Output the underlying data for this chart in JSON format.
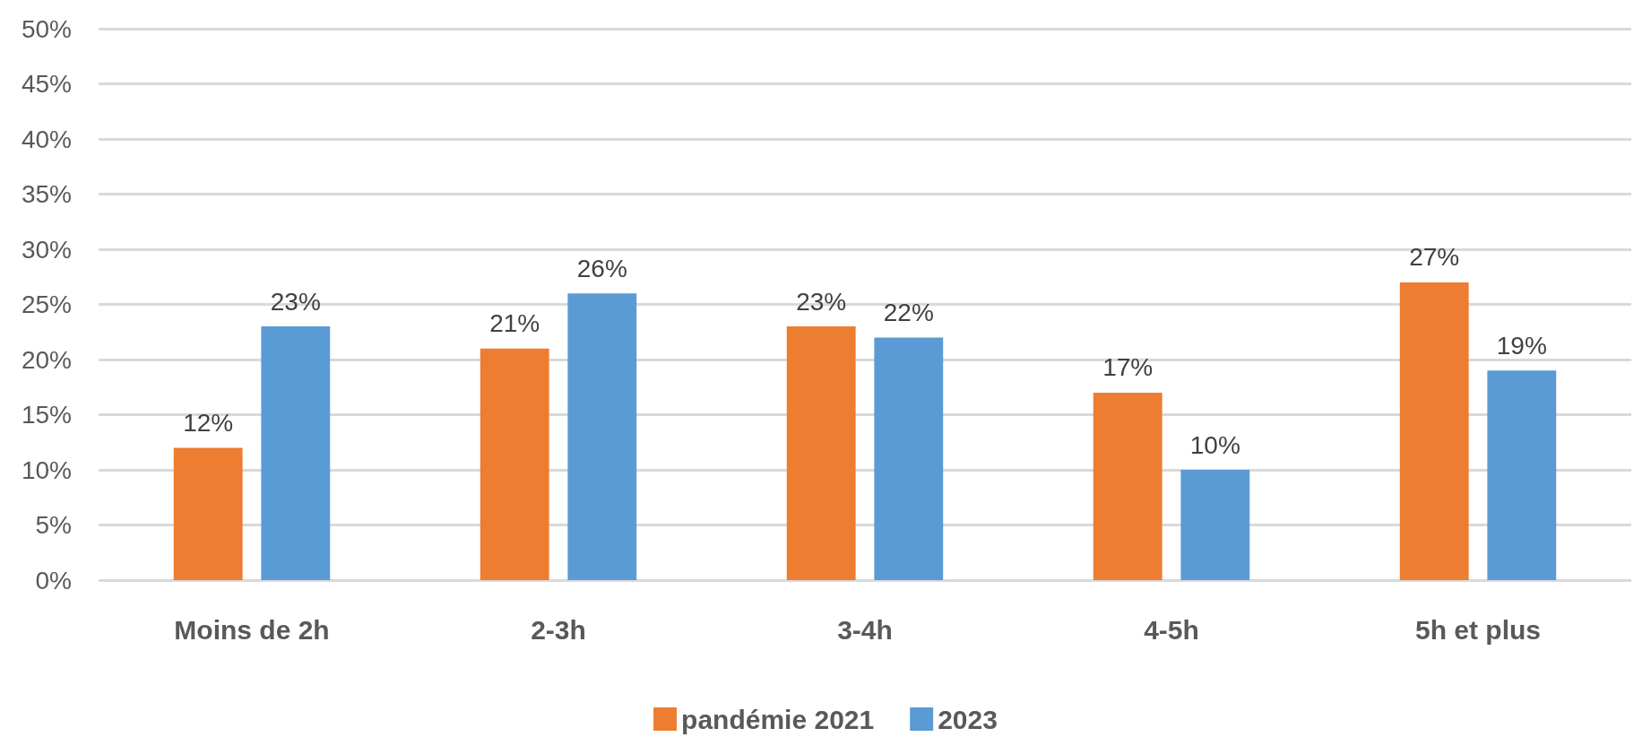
{
  "chart_data": {
    "type": "bar",
    "categories": [
      "Moins de 2h",
      "2-3h",
      "3-4h",
      "4-5h",
      "5h et plus"
    ],
    "series": [
      {
        "name": "pandémie 2021",
        "color": "#ed7d31",
        "values": [
          12,
          21,
          23,
          17,
          27
        ],
        "value_labels": [
          "12%",
          "21%",
          "23%",
          "17%",
          "27%"
        ]
      },
      {
        "name": "2023",
        "color": "#5b9bd5",
        "values": [
          23,
          26,
          22,
          10,
          19
        ],
        "value_labels": [
          "23%",
          "26%",
          "22%",
          "10%",
          "19%"
        ]
      }
    ],
    "ylim": [
      0,
      50
    ],
    "yticks": [
      {
        "value": 0,
        "label": "0%"
      },
      {
        "value": 5,
        "label": "5%"
      },
      {
        "value": 10,
        "label": "10%"
      },
      {
        "value": 15,
        "label": "15%"
      },
      {
        "value": 20,
        "label": "20%"
      },
      {
        "value": 25,
        "label": "25%"
      },
      {
        "value": 30,
        "label": "30%"
      },
      {
        "value": 35,
        "label": "35%"
      },
      {
        "value": 40,
        "label": "40%"
      },
      {
        "value": 45,
        "label": "45%"
      },
      {
        "value": 50,
        "label": "50%"
      }
    ],
    "grid": "y",
    "legend": "bottom"
  }
}
